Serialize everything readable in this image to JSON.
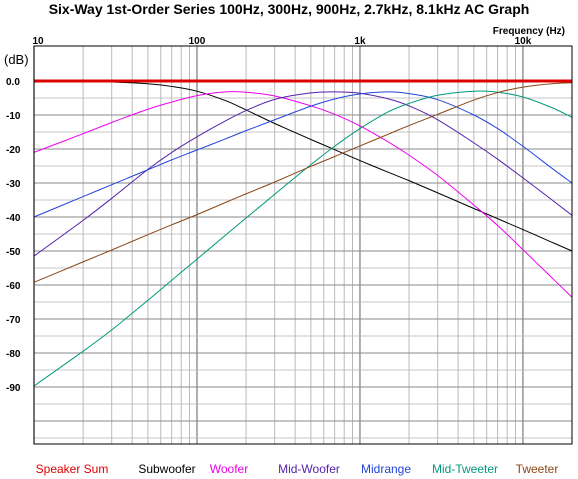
{
  "chart_data": {
    "type": "line",
    "title": "Six-Way 1st-Order Series 100Hz, 300Hz, 900Hz, 2.7kHz, 8.1kHz AC Graph",
    "xlabel": "Frequency   (Hz)",
    "ylabel": "(dB)",
    "x_scale": "log",
    "xlim": [
      10,
      20000
    ],
    "ylim": [
      -95,
      0
    ],
    "grid": true,
    "legend_position": "bottom",
    "x_tick_labels": [
      {
        "value": 10,
        "label": "10"
      },
      {
        "value": 100,
        "label": "100"
      },
      {
        "value": 1000,
        "label": "1k"
      },
      {
        "value": 10000,
        "label": "10k"
      }
    ],
    "y_tick_labels": [
      {
        "value": 0,
        "label": "0.0"
      },
      {
        "value": -10,
        "label": "-10"
      },
      {
        "value": -20,
        "label": "-20"
      },
      {
        "value": -30,
        "label": "-30"
      },
      {
        "value": -40,
        "label": "-40"
      },
      {
        "value": -50,
        "label": "-50"
      },
      {
        "value": -60,
        "label": "-60"
      },
      {
        "value": -70,
        "label": "-70"
      },
      {
        "value": -80,
        "label": "-80"
      },
      {
        "value": -90,
        "label": "-90"
      }
    ],
    "x": [
      10,
      20,
      30,
      50,
      70,
      100,
      150,
      200,
      300,
      500,
      700,
      1000,
      1500,
      2000,
      3000,
      5000,
      7000,
      10000,
      15000,
      20000
    ],
    "series": [
      {
        "name": "Speaker Sum",
        "color": "#dd0000",
        "values": [
          0,
          0,
          0,
          0,
          0,
          0,
          0,
          0,
          0,
          0,
          0,
          0,
          0,
          0,
          0,
          0,
          0,
          0,
          0,
          0
        ]
      },
      {
        "name": "Subwoofer",
        "color": "#000000",
        "values": [
          0,
          -0.1,
          -0.3,
          -0.8,
          -1.6,
          -3.0,
          -5.8,
          -8.5,
          -12.5,
          -17.2,
          -20.2,
          -23.4,
          -26.9,
          -29.3,
          -32.9,
          -37.5,
          -40.5,
          -43.7,
          -47.4,
          -50.0
        ]
      },
      {
        "name": "Woofer",
        "color": "#ee00ee",
        "values": [
          -21.0,
          -15.5,
          -12.2,
          -8.3,
          -6.2,
          -4.3,
          -3.2,
          -3.3,
          -4.4,
          -7.3,
          -9.8,
          -13.2,
          -18.0,
          -21.8,
          -27.8,
          -36.5,
          -42.5,
          -49.6,
          -57.8,
          -63.6
        ]
      },
      {
        "name": "Mid-Woofer",
        "color": "#5522aa",
        "values": [
          -51.5,
          -41.0,
          -34.5,
          -26.0,
          -21.0,
          -16.4,
          -11.7,
          -8.7,
          -5.4,
          -3.5,
          -3.2,
          -3.6,
          -5.3,
          -7.3,
          -11.4,
          -18.2,
          -23.0,
          -28.5,
          -34.9,
          -39.5
        ]
      },
      {
        "name": "Midrange",
        "color": "#2244dd",
        "values": [
          -40.0,
          -34.0,
          -30.5,
          -26.1,
          -23.2,
          -20.3,
          -17.0,
          -14.6,
          -11.4,
          -7.4,
          -5.3,
          -3.8,
          -3.2,
          -3.7,
          -5.5,
          -10.0,
          -14.0,
          -19.2,
          -25.6,
          -30.0
        ]
      },
      {
        "name": "Mid-Tweeter",
        "color": "#00997a",
        "values": [
          -89.7,
          -79.5,
          -73.2,
          -64.5,
          -58.6,
          -52.4,
          -45.3,
          -40.3,
          -33.3,
          -24.6,
          -19.2,
          -14.0,
          -9.0,
          -6.6,
          -4.2,
          -3.0,
          -3.3,
          -4.7,
          -7.8,
          -10.7
        ]
      },
      {
        "name": "Tweeter",
        "color": "#8b4513",
        "values": [
          -59.2,
          -53.2,
          -49.7,
          -45.2,
          -42.3,
          -39.3,
          -35.7,
          -33.2,
          -29.7,
          -25.1,
          -22.2,
          -19.1,
          -15.6,
          -13.1,
          -9.8,
          -5.6,
          -3.4,
          -1.8,
          -0.8,
          -0.5
        ]
      }
    ]
  }
}
